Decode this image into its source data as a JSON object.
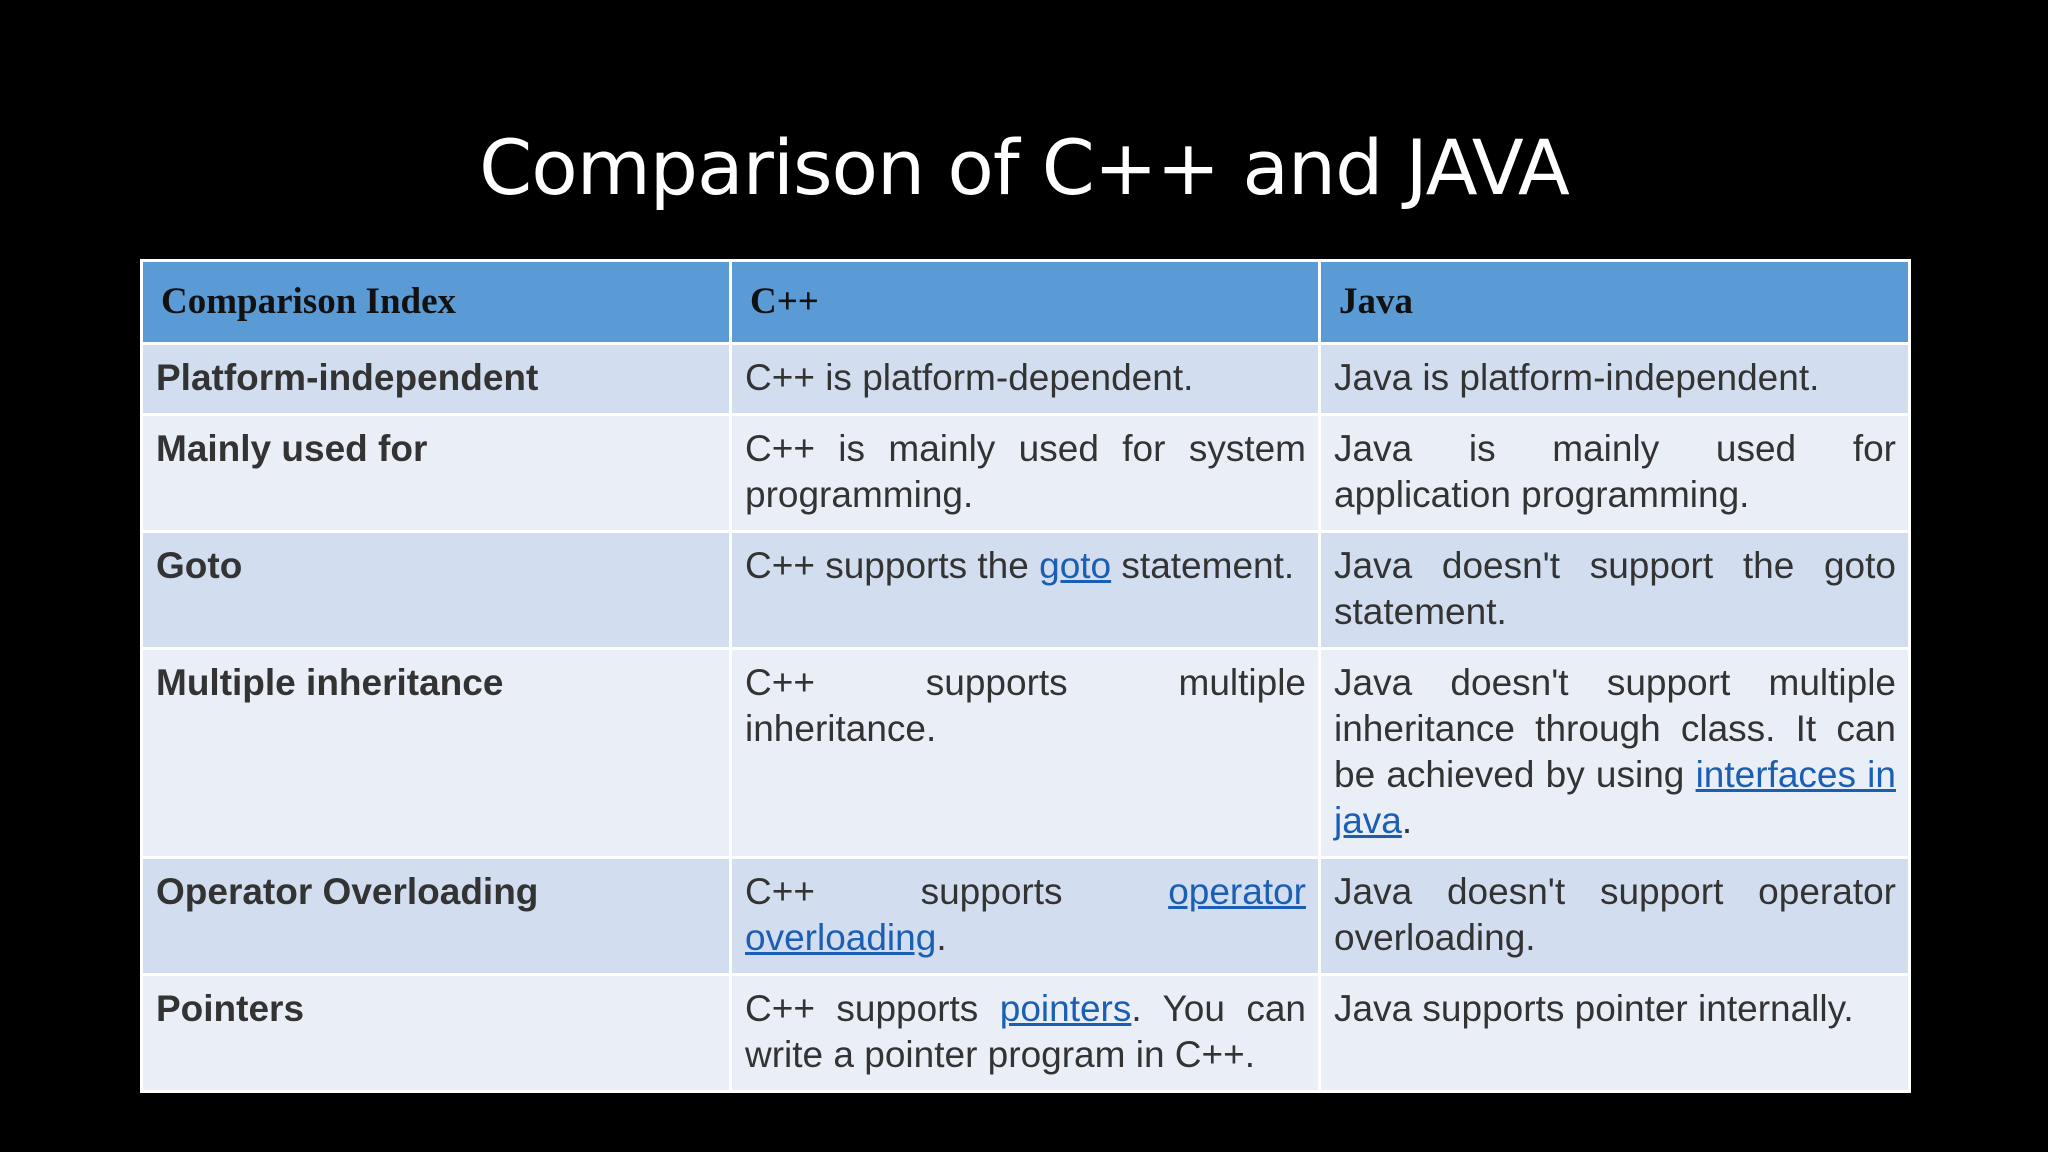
{
  "title": "Comparison of C++ and JAVA",
  "table": {
    "header": [
      "Comparison Index",
      "C++",
      "Java"
    ],
    "rows": [
      [
        [
          {
            "text": "Platform-independent"
          }
        ],
        [
          {
            "text": "C++ is platform-dependent."
          }
        ],
        [
          {
            "text": "Java is platform-independent."
          }
        ]
      ],
      [
        [
          {
            "text": "Mainly used for"
          }
        ],
        [
          {
            "text": "C++ is mainly used for system programming."
          }
        ],
        [
          {
            "text": "Java is mainly used for application programming."
          }
        ]
      ],
      [
        [
          {
            "text": "Goto"
          }
        ],
        [
          {
            "text": "C++ supports the "
          },
          {
            "text": "goto",
            "link": true
          },
          {
            "text": " statement."
          }
        ],
        [
          {
            "text": "Java doesn't support the goto statement."
          }
        ]
      ],
      [
        [
          {
            "text": "Multiple inheritance"
          }
        ],
        [
          {
            "text": "C++ supports multiple inheritance."
          }
        ],
        [
          {
            "text": "Java doesn't support multiple inheritance through class. It can be achieved by using "
          },
          {
            "text": "interfaces in java",
            "link": true
          },
          {
            "text": "."
          }
        ]
      ],
      [
        [
          {
            "text": "Operator Overloading"
          }
        ],
        [
          {
            "text": "C++ supports "
          },
          {
            "text": "operator overloading",
            "link": true
          },
          {
            "text": "."
          }
        ],
        [
          {
            "text": "Java doesn't support operator overloading."
          }
        ]
      ],
      [
        [
          {
            "text": "Pointers"
          }
        ],
        [
          {
            "text": "C++ supports "
          },
          {
            "text": "pointers",
            "link": true
          },
          {
            "text": ". You can write a pointer program in C++."
          }
        ],
        [
          {
            "text": "Java supports pointer internally."
          }
        ]
      ]
    ]
  }
}
